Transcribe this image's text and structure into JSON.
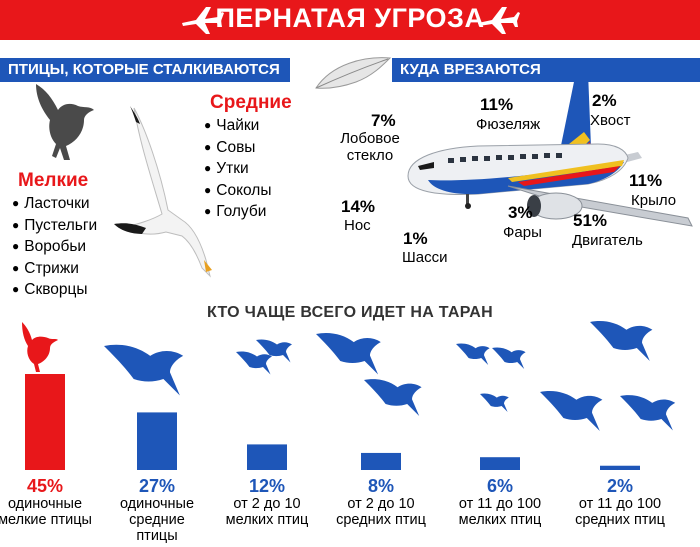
{
  "header": {
    "title": "ПЕРНАТАЯ УГРОЗА",
    "icon": "airplane-icon"
  },
  "left_panel": {
    "title": "ПТИЦЫ, КОТОРЫЕ СТАЛКИВАЮТСЯ",
    "small": {
      "title": "Мелкие",
      "items": [
        "Ласточки",
        "Пустельги",
        "Воробьи",
        "Стрижи",
        "Скворцы"
      ]
    },
    "medium": {
      "title": "Средние",
      "items": [
        "Чайки",
        "Совы",
        "Утки",
        "Соколы",
        "Голуби"
      ]
    }
  },
  "right_panel": {
    "title": "КУДА ВРЕЗАЮТСЯ",
    "parts": [
      {
        "pct": "7%",
        "label": "Лобовое стекло"
      },
      {
        "pct": "11%",
        "label": "Фюзеляж"
      },
      {
        "pct": "2%",
        "label": "Хвост"
      },
      {
        "pct": "14%",
        "label": "Нос"
      },
      {
        "pct": "3%",
        "label": "Фары"
      },
      {
        "pct": "11%",
        "label": "Крыло"
      },
      {
        "pct": "1%",
        "label": "Шасси"
      },
      {
        "pct": "51%",
        "label": "Двигатель"
      }
    ]
  },
  "chart_data": {
    "type": "bar",
    "title": "КТО ЧАЩЕ ВСЕГО ИДЕТ НА ТАРАН",
    "categories": [
      "одиночные мелкие птицы",
      "одиночные средние птицы",
      "от 2 до 10 мелких птиц",
      "от 2 до 10 средних птиц",
      "от 11 до 100 мелких птиц",
      "от 11 до 100 средних птиц"
    ],
    "values": [
      45,
      27,
      12,
      8,
      6,
      2
    ],
    "labels": [
      "45%",
      "27%",
      "12%",
      "8%",
      "6%",
      "2%"
    ],
    "unit": "%",
    "ylim": [
      0,
      45
    ],
    "colors": [
      "#e8171a",
      "#1e56b8",
      "#1e56b8",
      "#1e56b8",
      "#1e56b8",
      "#1e56b8"
    ],
    "grid": false
  }
}
